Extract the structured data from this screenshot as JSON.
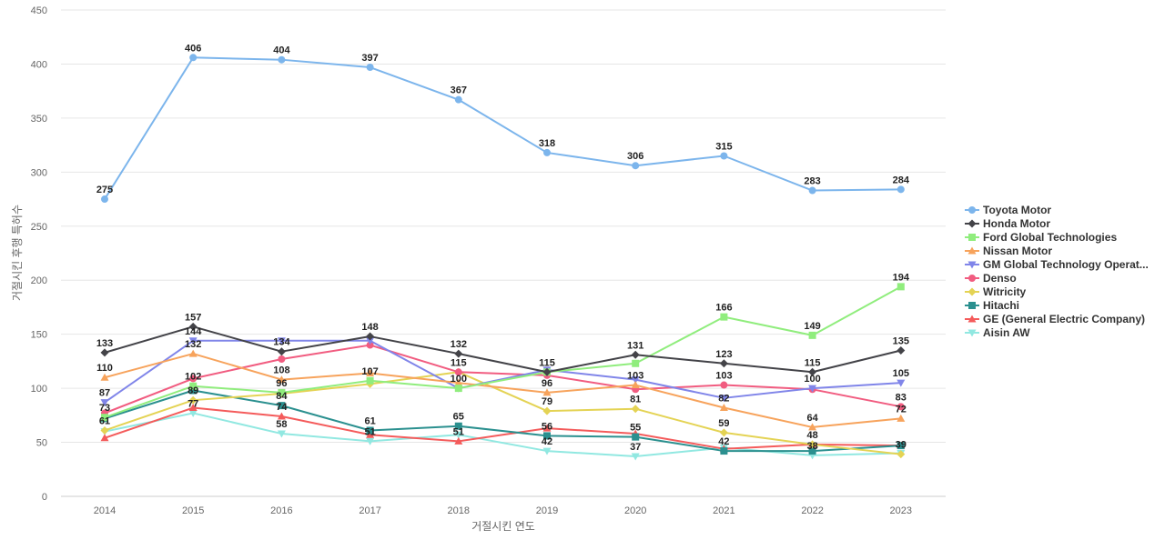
{
  "chart_data": {
    "type": "line",
    "title": "",
    "xlabel": "거절시킨 연도",
    "ylabel": "거절시킨 후행 특허수",
    "categories": [
      "2014",
      "2015",
      "2016",
      "2017",
      "2018",
      "2019",
      "2020",
      "2021",
      "2022",
      "2023"
    ],
    "ylim": [
      0,
      450
    ],
    "yticks": [
      0,
      50,
      100,
      150,
      200,
      250,
      300,
      350,
      400,
      450
    ],
    "grid": true,
    "legend_position": "right",
    "series": [
      {
        "name": "Toyota Motor",
        "color": "#7cb5ec",
        "marker": "circle",
        "values": [
          275,
          406,
          404,
          397,
          367,
          318,
          306,
          315,
          283,
          284
        ]
      },
      {
        "name": "Honda Motor",
        "color": "#434348",
        "marker": "diamond",
        "values": [
          133,
          157,
          134,
          148,
          132,
          115,
          131,
          123,
          115,
          135
        ]
      },
      {
        "name": "Ford Global Technologies",
        "color": "#90ed7d",
        "marker": "square",
        "values": [
          73,
          102,
          96,
          107,
          100,
          115,
          123,
          166,
          149,
          194
        ]
      },
      {
        "name": "Nissan Motor",
        "color": "#f7a35c",
        "marker": "triangle",
        "values": [
          110,
          132,
          108,
          114,
          105,
          96,
          103,
          82,
          64,
          72
        ]
      },
      {
        "name": "GM Global Technology Operat...",
        "color": "#8085e9",
        "marker": "triangle-down",
        "values": [
          87,
          144,
          144,
          144,
          100,
          117,
          108,
          91,
          100,
          105
        ]
      },
      {
        "name": "Denso",
        "color": "#f15c80",
        "marker": "circle",
        "values": [
          77,
          109,
          127,
          140,
          115,
          112,
          99,
          103,
          99,
          83
        ]
      },
      {
        "name": "Witricity",
        "color": "#e4d354",
        "marker": "diamond",
        "values": [
          61,
          89,
          95,
          104,
          115,
          79,
          81,
          59,
          48,
          39
        ]
      },
      {
        "name": "Hitachi",
        "color": "#2b908f",
        "marker": "square",
        "values": [
          72,
          98,
          84,
          61,
          65,
          56,
          55,
          42,
          42,
          47
        ]
      },
      {
        "name": "GE (General Electric Company)",
        "color": "#f45b5b",
        "marker": "triangle",
        "values": [
          54,
          82,
          74,
          57,
          51,
          63,
          58,
          44,
          48,
          47
        ]
      },
      {
        "name": "Aisin AW",
        "color": "#91e8e1",
        "marker": "triangle-down",
        "values": [
          60,
          77,
          58,
          51,
          57,
          42,
          37,
          45,
          38,
          40
        ]
      }
    ],
    "data_labels": [
      {
        "text": "275",
        "x": "2014",
        "y": 275
      },
      {
        "text": "406",
        "x": "2015",
        "y": 406
      },
      {
        "text": "404",
        "x": "2016",
        "y": 404
      },
      {
        "text": "397",
        "x": "2017",
        "y": 397
      },
      {
        "text": "367",
        "x": "2018",
        "y": 367
      },
      {
        "text": "318",
        "x": "2019",
        "y": 318
      },
      {
        "text": "306",
        "x": "2020",
        "y": 306
      },
      {
        "text": "315",
        "x": "2021",
        "y": 315
      },
      {
        "text": "283",
        "x": "2022",
        "y": 283
      },
      {
        "text": "284",
        "x": "2023",
        "y": 284
      },
      {
        "text": "133",
        "x": "2014",
        "y": 133
      },
      {
        "text": "157",
        "x": "2015",
        "y": 157
      },
      {
        "text": "134",
        "x": "2016",
        "y": 134
      },
      {
        "text": "148",
        "x": "2017",
        "y": 148
      },
      {
        "text": "132",
        "x": "2018",
        "y": 132
      },
      {
        "text": "115",
        "x": "2019",
        "y": 115
      },
      {
        "text": "131",
        "x": "2020",
        "y": 131
      },
      {
        "text": "123",
        "x": "2021",
        "y": 123
      },
      {
        "text": "115",
        "x": "2022",
        "y": 115
      },
      {
        "text": "135",
        "x": "2023",
        "y": 135
      },
      {
        "text": "166",
        "x": "2021",
        "y": 166
      },
      {
        "text": "149",
        "x": "2022",
        "y": 149
      },
      {
        "text": "194",
        "x": "2023",
        "y": 194
      },
      {
        "text": "115",
        "x": "2018",
        "y": 115
      },
      {
        "text": "110",
        "x": "2014",
        "y": 110
      },
      {
        "text": "132",
        "x": "2015",
        "y": 132
      },
      {
        "text": "108",
        "x": "2016",
        "y": 108
      },
      {
        "text": "144",
        "x": "2015",
        "y": 144
      },
      {
        "text": "107",
        "x": "2017",
        "y": 107
      },
      {
        "text": "100",
        "x": "2018",
        "y": 100
      },
      {
        "text": "96",
        "x": "2019",
        "y": 96
      },
      {
        "text": "103",
        "x": "2020",
        "y": 103
      },
      {
        "text": "103",
        "x": "2021",
        "y": 103
      },
      {
        "text": "100",
        "x": "2022",
        "y": 100
      },
      {
        "text": "105",
        "x": "2023",
        "y": 105
      },
      {
        "text": "87",
        "x": "2014",
        "y": 87
      },
      {
        "text": "102",
        "x": "2015",
        "y": 102
      },
      {
        "text": "96",
        "x": "2016",
        "y": 96
      },
      {
        "text": "82",
        "x": "2021",
        "y": 82
      },
      {
        "text": "83",
        "x": "2023",
        "y": 83
      },
      {
        "text": "72",
        "x": "2023",
        "y": 72
      },
      {
        "text": "73",
        "x": "2014",
        "y": 73
      },
      {
        "text": "89",
        "x": "2015",
        "y": 89
      },
      {
        "text": "84",
        "x": "2016",
        "y": 84
      },
      {
        "text": "79",
        "x": "2019",
        "y": 79
      },
      {
        "text": "81",
        "x": "2020",
        "y": 81
      },
      {
        "text": "59",
        "x": "2021",
        "y": 59
      },
      {
        "text": "64",
        "x": "2022",
        "y": 64
      },
      {
        "text": "61",
        "x": "2014",
        "y": 61
      },
      {
        "text": "77",
        "x": "2015",
        "y": 77
      },
      {
        "text": "74",
        "x": "2016",
        "y": 74
      },
      {
        "text": "61",
        "x": "2017",
        "y": 61
      },
      {
        "text": "65",
        "x": "2018",
        "y": 65
      },
      {
        "text": "56",
        "x": "2019",
        "y": 56
      },
      {
        "text": "55",
        "x": "2020",
        "y": 55
      },
      {
        "text": "48",
        "x": "2022",
        "y": 48
      },
      {
        "text": "58",
        "x": "2016",
        "y": 58
      },
      {
        "text": "51",
        "x": "2017",
        "y": 51
      },
      {
        "text": "51",
        "x": "2018",
        "y": 51
      },
      {
        "text": "42",
        "x": "2019",
        "y": 42
      },
      {
        "text": "37",
        "x": "2020",
        "y": 37
      },
      {
        "text": "42",
        "x": "2021",
        "y": 42
      },
      {
        "text": "38",
        "x": "2022",
        "y": 38
      },
      {
        "text": "39",
        "x": "2023",
        "y": 39
      }
    ]
  }
}
